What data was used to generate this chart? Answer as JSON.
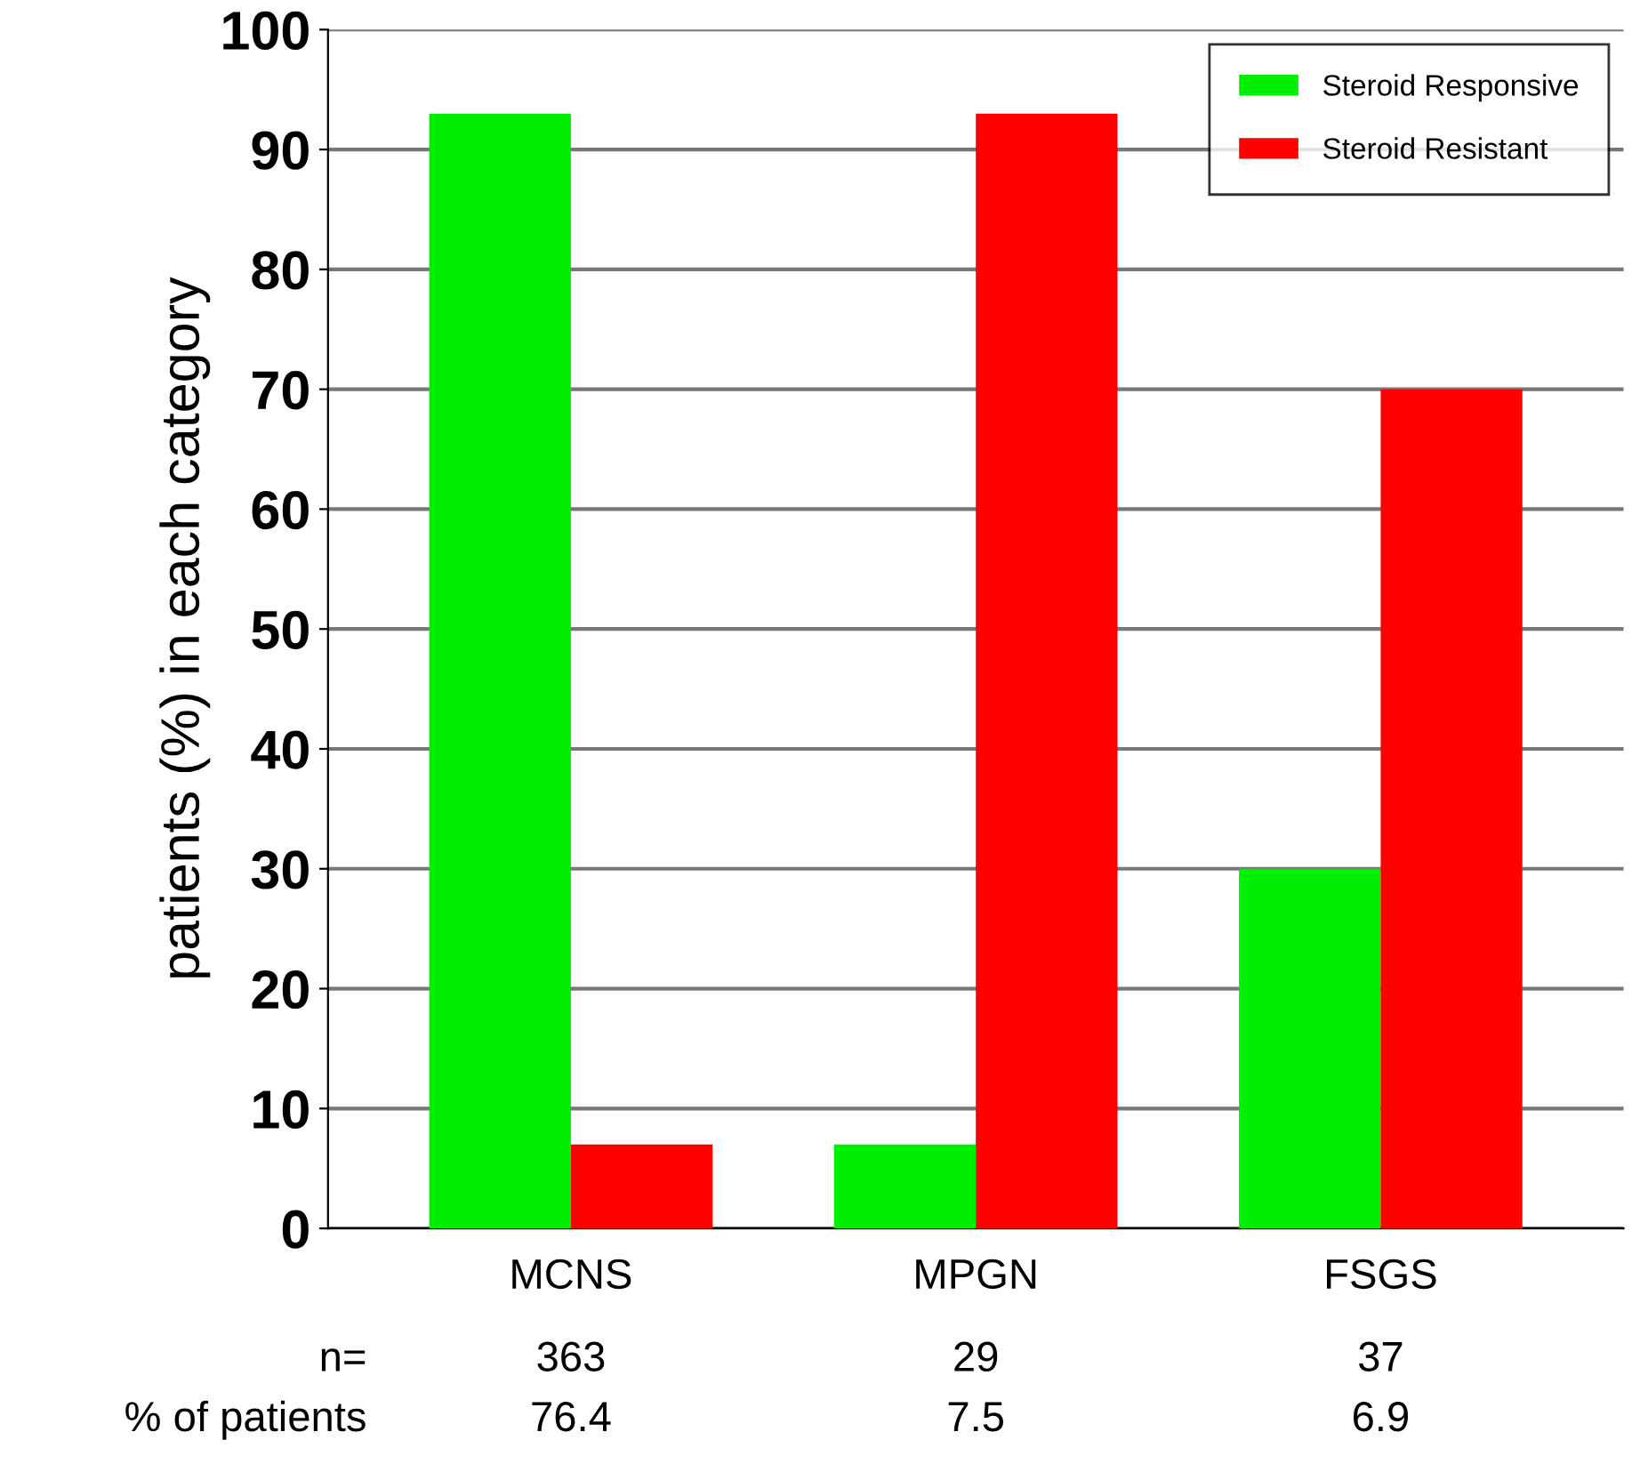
{
  "chart_data": {
    "type": "bar",
    "ylabel": "patients (%) in each category",
    "categories": [
      "MCNS",
      "MPGN",
      "FSGS"
    ],
    "series": [
      {
        "name": "Steroid Responsive",
        "color": "#00ee00",
        "values": [
          93,
          7,
          30
        ]
      },
      {
        "name": "Steroid Resistant",
        "color": "#ff0000",
        "values": [
          7,
          93,
          70
        ]
      }
    ],
    "ylim": [
      0,
      100
    ],
    "yticks": [
      0,
      10,
      20,
      30,
      40,
      50,
      60,
      70,
      80,
      90,
      100
    ],
    "grid": "y",
    "legend": "top right",
    "annotations": [
      "n=",
      "363",
      "29",
      "37",
      "% of patients",
      "76.4",
      "7.5",
      "6.9"
    ]
  }
}
